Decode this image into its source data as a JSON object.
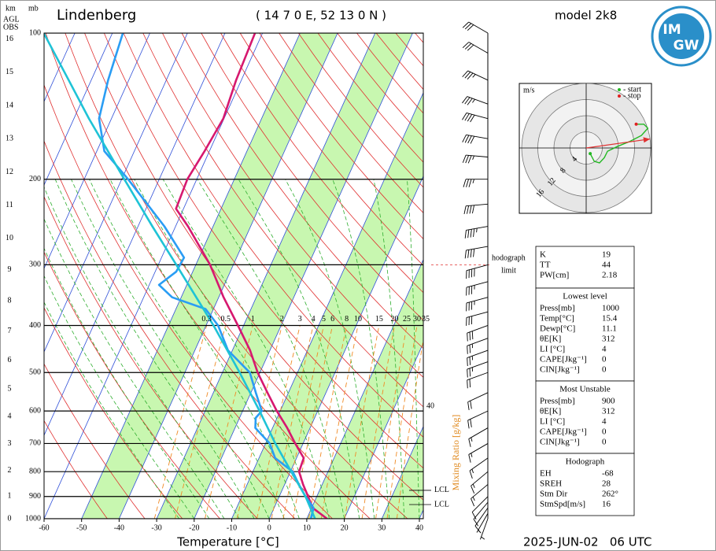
{
  "logo": [
    "IM",
    "GW"
  ],
  "chart_data": {
    "type": "skew-t",
    "title": "Lindenberg",
    "location": "( 14 7 0 E, 52 13 0 N )",
    "model": "model 2k8",
    "date": "2025-JUN-02   06 UTC",
    "xlabel": "Temperature [°C]",
    "xlim": [
      -60,
      40
    ],
    "xticks": [
      -60,
      -50,
      -40,
      -30,
      -20,
      -10,
      0,
      10,
      20,
      30,
      40
    ],
    "ylabel": "mb",
    "ylim": [
      1000,
      100
    ],
    "yticks": [
      1000,
      900,
      800,
      700,
      600,
      500,
      400,
      300,
      200,
      100
    ],
    "log_scale": true,
    "height_axis": {
      "label": "km",
      "sublabels": [
        "AGL",
        "OBS"
      ],
      "ticks": [
        0,
        1,
        2,
        3,
        4,
        5,
        6,
        7,
        8,
        9,
        10,
        11,
        12,
        13,
        14,
        15,
        16
      ]
    },
    "mixing_ratio": {
      "label": "Mixing Ratio [g/kg]",
      "values": [
        0.3,
        0.5,
        1,
        2,
        3,
        4,
        5,
        6,
        8,
        10,
        15,
        20,
        25,
        30,
        35
      ]
    },
    "edge_label": "40",
    "series": [
      {
        "color": "#d6186f",
        "pressure": [
          1000,
          950,
          900,
          850,
          800,
          750,
          700,
          650,
          600,
          550,
          500,
          450,
          400,
          350,
          300,
          250,
          230,
          200,
          175,
          150,
          125,
          100
        ],
        "temperature": [
          15.4,
          10.3,
          7.7,
          4.9,
          2.3,
          1.9,
          -2.1,
          -6.1,
          -10.9,
          -15.6,
          -20.6,
          -25.3,
          -31.5,
          -38.7,
          -46.2,
          -56.7,
          -62,
          -62.5,
          -61.3,
          -60.2,
          -61.4,
          -62
        ]
      },
      {
        "color": "#2a9df4",
        "pressure": [
          1000,
          950,
          900,
          850,
          800,
          750,
          700,
          650,
          620,
          600,
          550,
          500,
          450,
          400,
          370,
          350,
          330,
          310,
          290,
          250,
          200,
          175,
          150,
          125,
          100
        ],
        "temperature": [
          11.1,
          10.5,
          7,
          3.8,
          0.6,
          -5.7,
          -8.9,
          -14.6,
          -15.7,
          -14.9,
          -18.7,
          -22.7,
          -31.2,
          -36.8,
          -42.1,
          -52.4,
          -57.4,
          -54.4,
          -54,
          -63,
          -78.3,
          -88,
          -93.3,
          -95.5,
          -97.2
        ]
      },
      {
        "color": "#1fc3d6",
        "pressure": [
          1000,
          900,
          800,
          700,
          600,
          500,
          400,
          300,
          250,
          200,
          150,
          125,
          100
        ],
        "temperature": [
          12.2,
          7,
          0.2,
          -7.4,
          -15.5,
          -25.4,
          -38,
          -55.2,
          -66.2,
          -79.3,
          -96,
          -106,
          -118.3
        ]
      }
    ],
    "lcl": [
      {
        "label": "LCL",
        "pressure": 874
      },
      {
        "label": "LCL",
        "pressure": 935
      }
    ],
    "hodograph_limit": {
      "label": [
        "hodograph",
        "limit"
      ],
      "pressure": 300
    },
    "winds": {
      "pressure": [
        100,
        110,
        125,
        140,
        150,
        165,
        180,
        200,
        225,
        250,
        275,
        300,
        325,
        350,
        375,
        400,
        425,
        450,
        475,
        500,
        550,
        600,
        650,
        700,
        750,
        800,
        850,
        900,
        925,
        950,
        975,
        1000
      ],
      "speed": [
        30,
        30,
        35,
        35,
        40,
        40,
        35,
        35,
        40,
        45,
        40,
        40,
        35,
        35,
        30,
        30,
        25,
        25,
        25,
        20,
        20,
        20,
        15,
        15,
        15,
        15,
        15,
        10,
        10,
        10,
        5,
        5
      ],
      "direction": [
        300,
        300,
        295,
        290,
        285,
        280,
        275,
        270,
        265,
        260,
        260,
        255,
        255,
        255,
        255,
        250,
        250,
        250,
        250,
        250,
        245,
        245,
        240,
        240,
        235,
        230,
        230,
        225,
        220,
        215,
        210,
        200
      ]
    },
    "hodograph": {
      "unit": "m/s",
      "legend": [
        {
          "label": "- start",
          "color": "#22b822"
        },
        {
          "label": "- stop",
          "color": "#e02020"
        }
      ],
      "rings": [
        4,
        8,
        12,
        16
      ],
      "color": "#22b822",
      "u": [
        1,
        2,
        3.3,
        4.5,
        5.3,
        7.8,
        10.8,
        13.7,
        15.3,
        14.3,
        12.4
      ],
      "v": [
        -1.4,
        -3.3,
        -3.7,
        -2.4,
        -0.8,
        0.4,
        1.6,
        3.1,
        4.9,
        5.9,
        5.9
      ]
    },
    "indices": [
      {
        "rows": [
          [
            "K",
            19
          ],
          [
            "TT",
            44
          ],
          [
            "PW[cm]",
            2.18
          ]
        ]
      },
      {
        "title": "Lowest level",
        "rows": [
          [
            "Press[mb]",
            1000
          ],
          [
            "Temp[°C]",
            15.4
          ],
          [
            "Dewp[°C]",
            11.1
          ],
          [
            "θE[K]",
            312
          ],
          [
            "LI [°C]",
            4
          ],
          [
            "CAPE[Jkg⁻¹]",
            0
          ],
          [
            "CIN[Jkg⁻¹]",
            0
          ]
        ]
      },
      {
        "title": "Most Unstable",
        "rows": [
          [
            "Press[mb]",
            900
          ],
          [
            "θE[K]",
            312
          ],
          [
            "LI [°C]",
            4
          ],
          [
            "CAPE[Jkg⁻¹]",
            0
          ],
          [
            "CIN[Jkg⁻¹]",
            0
          ]
        ]
      },
      {
        "title": "Hodograph",
        "rows": [
          [
            "EH",
            -68
          ],
          [
            "SREH",
            28
          ],
          [
            "Stm Dir",
            {
              "value": 262,
              "label": "262°"
            }
          ],
          [
            "StmSpd[m/s]",
            16
          ]
        ]
      }
    ]
  }
}
